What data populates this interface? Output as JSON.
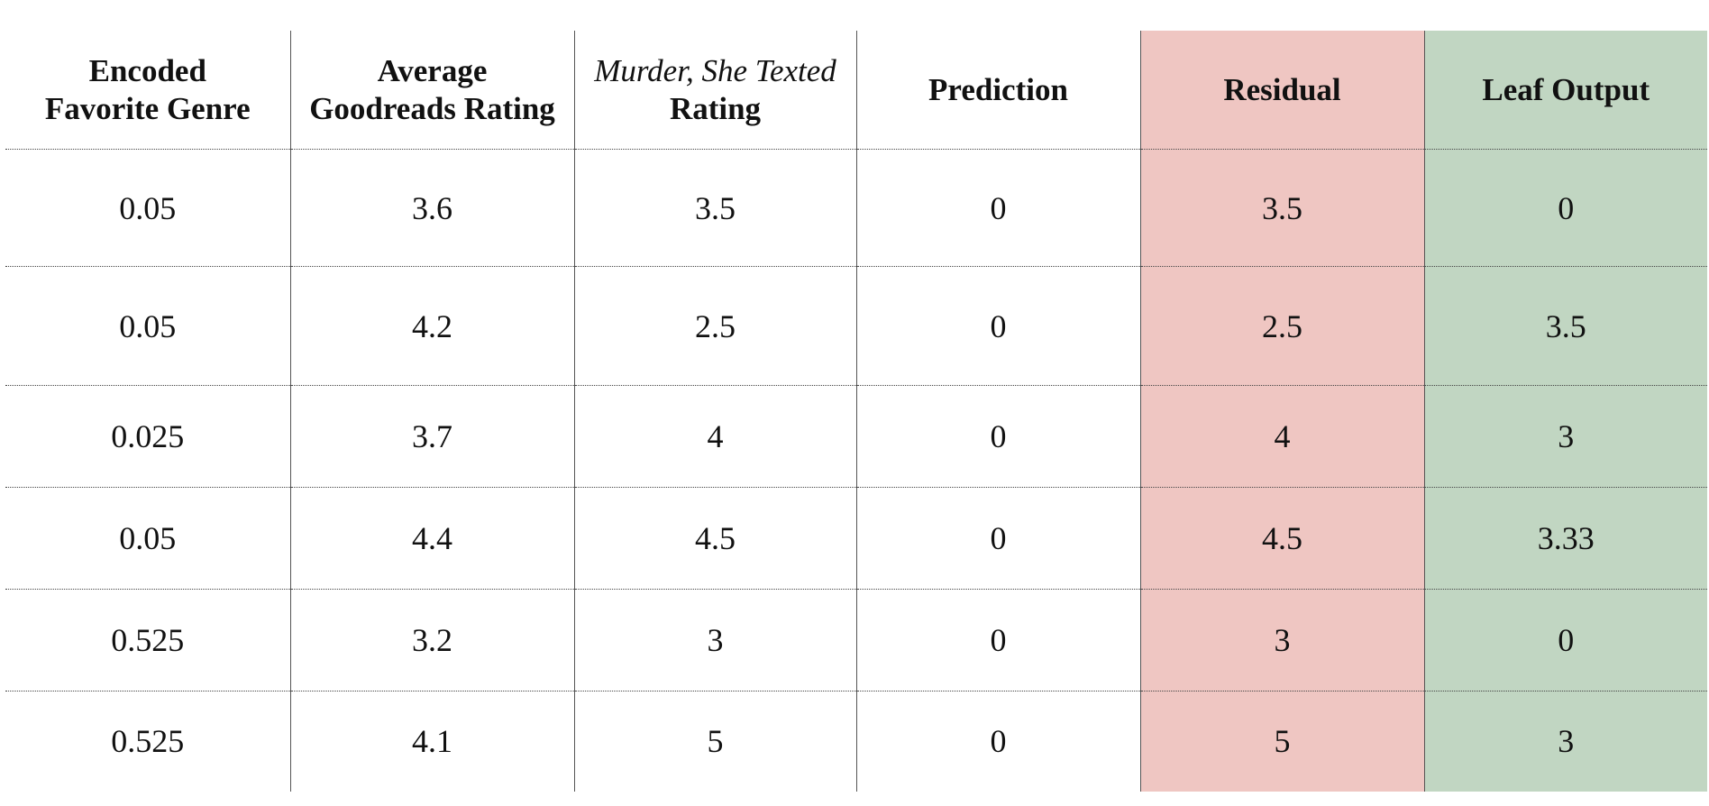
{
  "table": {
    "headers": [
      [
        "Encoded",
        "Favorite Genre"
      ],
      [
        "Average",
        "Goodreads Rating"
      ],
      [
        "Murder, She Texted",
        "Rating"
      ],
      [
        "Prediction"
      ],
      [
        "Residual"
      ],
      [
        "Leaf Output"
      ]
    ],
    "rows": [
      [
        0.05,
        3.6,
        3.5,
        0,
        3.5,
        0
      ],
      [
        0.05,
        4.2,
        2.5,
        0,
        2.5,
        3.5
      ],
      [
        0.025,
        3.7,
        4,
        0,
        4,
        3
      ],
      [
        0.05,
        4.4,
        4.5,
        0,
        4.5,
        3.33
      ],
      [
        0.525,
        3.2,
        3,
        0,
        3,
        0
      ],
      [
        0.525,
        4.1,
        5,
        0,
        5,
        3
      ]
    ]
  }
}
